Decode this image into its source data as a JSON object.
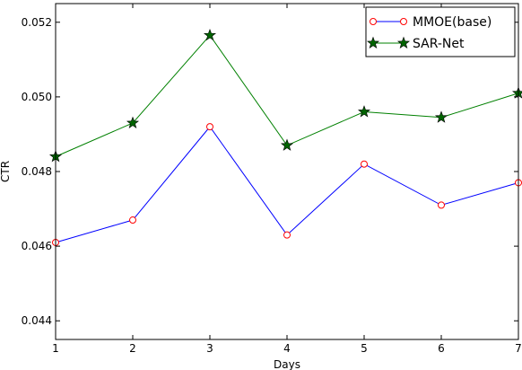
{
  "chart_data": {
    "type": "line",
    "xlabel": "Days",
    "ylabel": "CTR",
    "x": [
      1,
      2,
      3,
      4,
      5,
      6,
      7
    ],
    "xlim": [
      1,
      7
    ],
    "ylim": [
      0.0435,
      0.0525
    ],
    "xticks": [
      "1",
      "2",
      "3",
      "4",
      "5",
      "6",
      "7"
    ],
    "yticks": [
      {
        "value": 0.044,
        "label": "0.044"
      },
      {
        "value": 0.046,
        "label": "0.046"
      },
      {
        "value": 0.048,
        "label": "0.048"
      },
      {
        "value": 0.05,
        "label": "0.050"
      },
      {
        "value": 0.052,
        "label": "0.052"
      }
    ],
    "grid": false,
    "legend_position": "top-right",
    "series": [
      {
        "name": "MMOE(base)",
        "color": "#0000ff",
        "marker": "circle",
        "marker_color": "#ff0000",
        "values": [
          0.0461,
          0.0467,
          0.0492,
          0.0463,
          0.0482,
          0.0471,
          0.0477
        ]
      },
      {
        "name": "SAR-Net",
        "color": "#008000",
        "marker": "star",
        "marker_color": "#006400",
        "values": [
          0.0484,
          0.0493,
          0.05165,
          0.0487,
          0.0496,
          0.04945,
          0.0501
        ]
      }
    ]
  }
}
